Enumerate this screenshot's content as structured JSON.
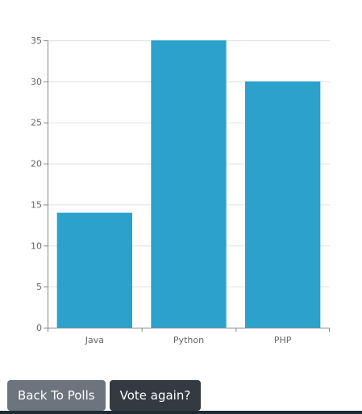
{
  "chart_data": {
    "type": "bar",
    "categories": [
      "Java",
      "Python",
      "PHP"
    ],
    "values": [
      14,
      35,
      30
    ],
    "ylim": [
      0,
      35
    ],
    "yticks": [
      0,
      5,
      10,
      15,
      20,
      25,
      30,
      35
    ],
    "grid": true,
    "bar_color": "#2ba1cc"
  },
  "actions": {
    "back_label": "Back To Polls",
    "vote_label": "Vote again?"
  },
  "colors": {
    "back_button": "#6c757d",
    "vote_button": "#343a40"
  }
}
